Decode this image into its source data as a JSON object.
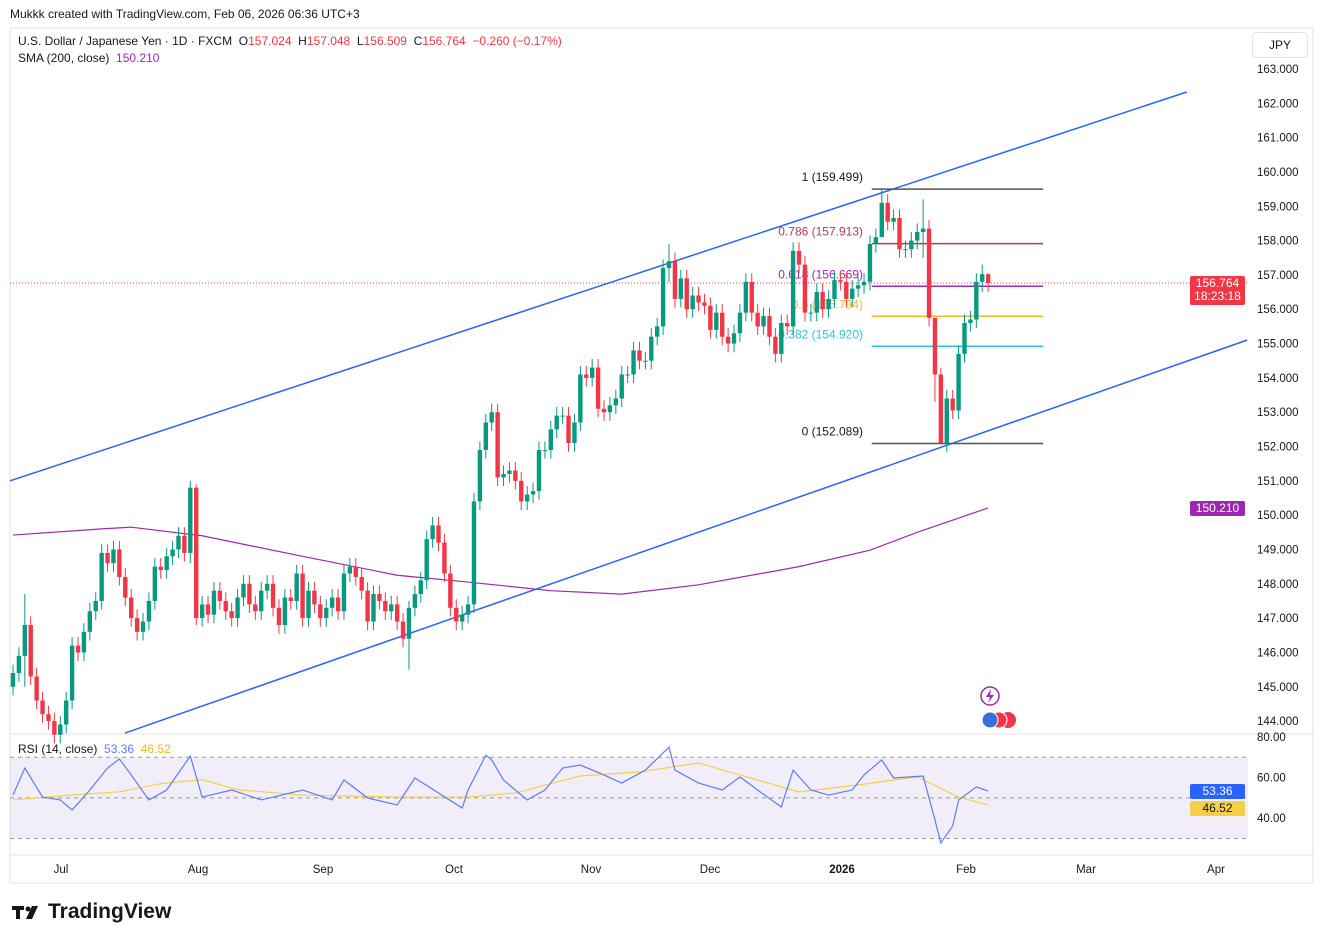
{
  "credit": "Mukkk created with TradingView.com, Feb 06, 2026 06:36 UTC+3",
  "legend": {
    "symbol": "U.S. Dollar / Japanese Yen · 1D · FXCM",
    "open_label": "O",
    "open": "157.024",
    "high_label": "H",
    "high": "157.048",
    "low_label": "L",
    "low": "156.509",
    "close_label": "C",
    "close": "156.764",
    "change": "−0.260 (−0.17%)",
    "sma_label": "SMA (200, close)",
    "sma_value": "150.210"
  },
  "currency_button": "JPY",
  "price_badge": {
    "price": "156.764",
    "countdown": "18:23:18"
  },
  "sma_badge": "150.210",
  "rsi_legend": {
    "label": "RSI (14, close)",
    "rsi": "53.36",
    "ma": "46.52"
  },
  "rsi_badges": {
    "rsi": "53.36",
    "ma": "46.52"
  },
  "brand": "TradingView",
  "colors": {
    "up": "#089981",
    "down": "#f23645",
    "channel": "#2962ff",
    "sma": "#9c27b0",
    "rsi": "#5b7cf7",
    "rsi_ma": "#f5d046",
    "price_line": "#f23645"
  },
  "chart_data": {
    "type": "candlestick",
    "price_axis": {
      "ticks": [
        "163.000",
        "162.000",
        "161.000",
        "160.000",
        "159.000",
        "158.000",
        "157.000",
        "156.000",
        "155.000",
        "154.000",
        "153.000",
        "152.000",
        "151.000",
        "150.000",
        "149.000",
        "148.000",
        "147.000",
        "146.000",
        "145.000",
        "144.000"
      ],
      "range": [
        143.6,
        163.6
      ]
    },
    "time_axis": {
      "ticks": [
        "Jul",
        "Aug",
        "Sep",
        "Oct",
        "Nov",
        "Dec",
        "2026",
        "Feb",
        "Mar",
        "Apr"
      ]
    },
    "first_open": 145.0,
    "closes": [
      145.4,
      145.9,
      146.8,
      145.3,
      144.6,
      144.2,
      144.0,
      143.6,
      143.9,
      144.6,
      146.2,
      146.0,
      146.6,
      147.2,
      147.5,
      148.9,
      148.6,
      149.0,
      148.2,
      147.6,
      147.0,
      146.6,
      146.9,
      147.5,
      148.5,
      148.4,
      148.8,
      149.0,
      149.4,
      148.9,
      150.8,
      147.0,
      147.4,
      147.1,
      147.8,
      147.5,
      147.2,
      147.0,
      147.6,
      148.0,
      147.4,
      147.2,
      147.8,
      148.0,
      147.3,
      146.8,
      147.6,
      147.5,
      148.3,
      147.0,
      147.8,
      147.4,
      147.0,
      147.3,
      147.6,
      147.2,
      148.3,
      148.5,
      148.2,
      147.8,
      146.9,
      147.7,
      147.5,
      147.2,
      147.4,
      146.9,
      146.4,
      147.3,
      147.7,
      148.1,
      149.3,
      149.7,
      149.2,
      148.3,
      147.3,
      146.9,
      147.1,
      147.4,
      150.4,
      151.9,
      152.7,
      153.0,
      151.1,
      151.2,
      151.3,
      151.0,
      150.4,
      150.6,
      150.7,
      151.9,
      151.9,
      152.5,
      152.9,
      152.9,
      152.1,
      152.7,
      154.1,
      154.0,
      154.3,
      153.1,
      153.0,
      153.2,
      153.4,
      154.1,
      154.1,
      154.8,
      154.5,
      154.5,
      155.2,
      155.5,
      157.2,
      157.4,
      156.3,
      156.9,
      156.0,
      156.4,
      156.2,
      156.1,
      155.4,
      155.9,
      155.2,
      155.0,
      155.3,
      155.9,
      156.8,
      155.9,
      155.5,
      155.8,
      155.2,
      154.7,
      155.6,
      155.5,
      157.7,
      157.3,
      155.9,
      155.9,
      156.5,
      156.0,
      156.3,
      156.85,
      156.8,
      156.3,
      156.6,
      156.7,
      156.8,
      157.9,
      158.1,
      159.1,
      158.55,
      158.66,
      157.75,
      157.75,
      158.0,
      158.25,
      158.35,
      155.75,
      154.1,
      152.1,
      153.4,
      153.05,
      154.7,
      155.6,
      155.7,
      156.8,
      157.02,
      156.764
    ],
    "wick_extremes": {
      "2": [
        147.7,
        145.0
      ],
      "30": [
        151.0,
        148.6
      ],
      "31": [
        150.9,
        146.8
      ],
      "67": [
        147.5,
        145.5
      ],
      "111": [
        157.9,
        156.8
      ],
      "147": [
        159.499,
        158.3
      ],
      "154": [
        159.2,
        157.5
      ],
      "156": [
        155.3,
        153.3
      ],
      "157": [
        154.3,
        152.089
      ],
      "164": [
        157.3,
        156.5
      ],
      "165": [
        157.048,
        156.509
      ]
    },
    "sma200": [
      [
        0,
        149.42
      ],
      [
        15,
        149.6
      ],
      [
        20,
        149.65
      ],
      [
        32,
        149.4
      ],
      [
        49,
        148.8
      ],
      [
        65,
        148.25
      ],
      [
        77,
        148.05
      ],
      [
        91,
        147.8
      ],
      [
        103,
        147.7
      ],
      [
        116,
        147.97
      ],
      [
        133,
        148.5
      ],
      [
        145,
        148.98
      ],
      [
        153,
        149.5
      ],
      [
        165,
        150.21
      ]
    ],
    "channel": {
      "upper": [
        [
          -0.5,
          151.0
        ],
        [
          198.6,
          162.33
        ]
      ],
      "lower": [
        [
          18.95,
          143.65
        ],
        [
          208.8,
          155.1
        ]
      ]
    },
    "fibonacci": {
      "from_bar": 145.3,
      "to_bar": 174.3,
      "levels": [
        {
          "label": "1 (159.499)",
          "price": 159.499,
          "color": "#131722"
        },
        {
          "label": "0.786 (157.913)",
          "price": 157.913,
          "color": "#b33a4c"
        },
        {
          "label": "0.618 (156.669)",
          "price": 156.669,
          "color": "#9c27b0"
        },
        {
          "label": "0.5 (155.794)",
          "price": 155.794,
          "color": "#f9b325"
        },
        {
          "label": "0.382 (154.920)",
          "price": 154.92,
          "color": "#26c6da"
        },
        {
          "label": "0 (152.089)",
          "price": 152.089,
          "color": "#131722"
        }
      ]
    },
    "rsi": {
      "axis_ticks": [
        "80.00",
        "60.00",
        "40.00"
      ],
      "bands": [
        70,
        50,
        30
      ],
      "rsi_line": [
        [
          0,
          51.4
        ],
        [
          2,
          64.7
        ],
        [
          5,
          50.4
        ],
        [
          8,
          49
        ],
        [
          10,
          44
        ],
        [
          13,
          53.9
        ],
        [
          16,
          64.7
        ],
        [
          18,
          69.2
        ],
        [
          20,
          61.3
        ],
        [
          23,
          49
        ],
        [
          26,
          53.9
        ],
        [
          30,
          70.6
        ],
        [
          32,
          50.4
        ],
        [
          37,
          53.9
        ],
        [
          42,
          49
        ],
        [
          49,
          53.9
        ],
        [
          54,
          49
        ],
        [
          56,
          58.8
        ],
        [
          60,
          50
        ],
        [
          65,
          46.5
        ],
        [
          68,
          59.8
        ],
        [
          72,
          52.4
        ],
        [
          76,
          45
        ],
        [
          77,
          53.9
        ],
        [
          80,
          71
        ],
        [
          81,
          68.7
        ],
        [
          83,
          58.8
        ],
        [
          87,
          49
        ],
        [
          90,
          53.9
        ],
        [
          93,
          64.7
        ],
        [
          96,
          66.2
        ],
        [
          100,
          61.3
        ],
        [
          103,
          57.3
        ],
        [
          107,
          63.7
        ],
        [
          111,
          75
        ],
        [
          112,
          63.7
        ],
        [
          116,
          57.3
        ],
        [
          120,
          53.9
        ],
        [
          123,
          60.3
        ],
        [
          126,
          53.9
        ],
        [
          130,
          45.5
        ],
        [
          132,
          63.7
        ],
        [
          135,
          53.9
        ],
        [
          138,
          51.4
        ],
        [
          142,
          53.9
        ],
        [
          144,
          61.3
        ],
        [
          147,
          68.7
        ],
        [
          149,
          59.8
        ],
        [
          154,
          60.8
        ],
        [
          156,
          39.1
        ],
        [
          157,
          27.8
        ],
        [
          159,
          36.2
        ],
        [
          160,
          49
        ],
        [
          163,
          55.4
        ],
        [
          165,
          53.36
        ]
      ],
      "ma_line": [
        [
          0,
          49
        ],
        [
          8,
          51
        ],
        [
          18,
          53
        ],
        [
          25,
          57
        ],
        [
          32,
          59
        ],
        [
          38,
          54
        ],
        [
          49,
          51.4
        ],
        [
          65,
          50.4
        ],
        [
          77,
          50.4
        ],
        [
          85,
          52.4
        ],
        [
          96,
          60.8
        ],
        [
          106,
          62.8
        ],
        [
          116,
          67.2
        ],
        [
          126,
          58.8
        ],
        [
          133,
          52.9
        ],
        [
          143,
          56.4
        ],
        [
          153,
          60.3
        ],
        [
          160,
          50.4
        ],
        [
          165,
          46.52
        ]
      ]
    },
    "events": [
      "lightning-icon",
      "us-flag-icon"
    ]
  }
}
